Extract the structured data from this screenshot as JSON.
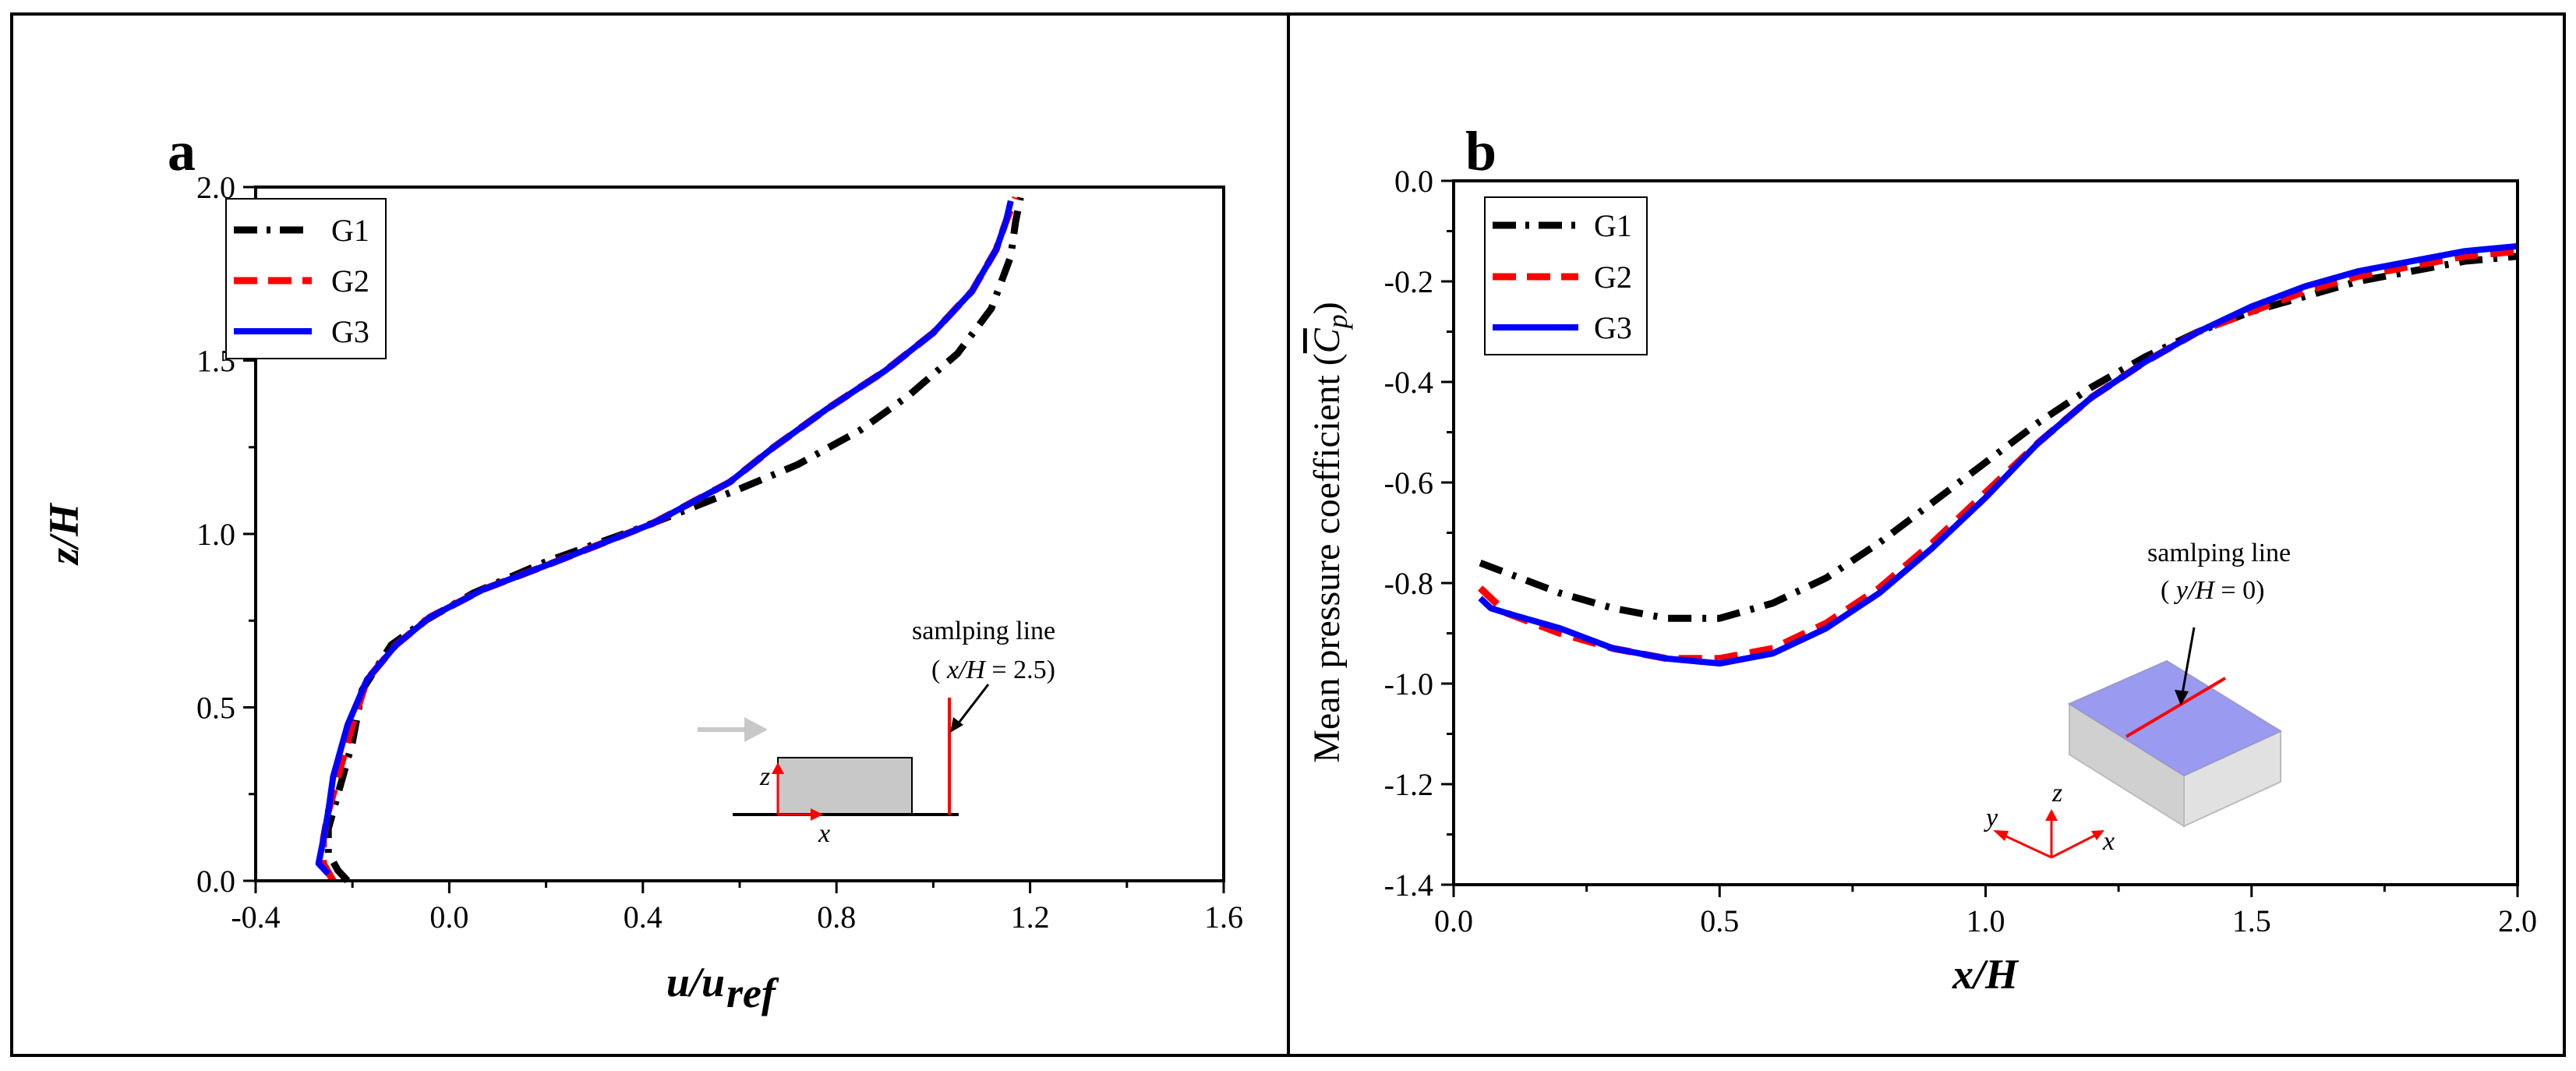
{
  "chart_data": [
    {
      "type": "line",
      "panel_label": "a",
      "xlabel": "u/u",
      "xlabel_sub": "ref",
      "ylabel": "z/H",
      "xlim": [
        -0.4,
        1.6
      ],
      "ylim": [
        0.0,
        2.0
      ],
      "xticks": [
        "-0.4",
        "0.0",
        "0.4",
        "0.8",
        "1.2",
        "1.6"
      ],
      "yticks": [
        "0.0",
        "0.5",
        "1.0",
        "1.5",
        "2.0"
      ],
      "legend": {
        "position": "top-left",
        "entries": [
          "G1",
          "G2",
          "G3"
        ]
      },
      "series": [
        {
          "name": "G1",
          "color": "#000000",
          "style": "dash-dot",
          "x": [
            -0.21,
            -0.23,
            -0.25,
            -0.25,
            -0.23,
            -0.2,
            -0.18,
            -0.12,
            -0.05,
            0.05,
            0.2,
            0.4,
            0.6,
            0.72,
            0.85,
            0.95,
            1.05,
            1.12,
            1.16,
            1.17,
            1.18
          ],
          "y": [
            0.0,
            0.03,
            0.08,
            0.15,
            0.25,
            0.4,
            0.55,
            0.68,
            0.75,
            0.83,
            0.92,
            1.02,
            1.13,
            1.2,
            1.3,
            1.4,
            1.52,
            1.65,
            1.8,
            1.9,
            1.97
          ]
        },
        {
          "name": "G2",
          "color": "#ff0000",
          "style": "dashed",
          "x": [
            -0.24,
            -0.26,
            -0.26,
            -0.25,
            -0.23,
            -0.2,
            -0.17,
            -0.11,
            -0.04,
            0.07,
            0.22,
            0.42,
            0.58,
            0.67,
            0.78,
            0.9,
            1.0,
            1.08,
            1.13,
            1.15,
            1.17
          ],
          "y": [
            0.0,
            0.05,
            0.12,
            0.2,
            0.3,
            0.45,
            0.58,
            0.68,
            0.76,
            0.84,
            0.92,
            1.03,
            1.15,
            1.25,
            1.36,
            1.47,
            1.58,
            1.7,
            1.82,
            1.9,
            1.97
          ]
        },
        {
          "name": "G3",
          "color": "#0000ff",
          "style": "solid",
          "x": [
            -0.25,
            -0.27,
            -0.26,
            -0.25,
            -0.24,
            -0.21,
            -0.17,
            -0.11,
            -0.04,
            0.07,
            0.22,
            0.42,
            0.58,
            0.67,
            0.78,
            0.9,
            1.0,
            1.08,
            1.13,
            1.15,
            1.16
          ],
          "y": [
            0.02,
            0.05,
            0.12,
            0.2,
            0.3,
            0.45,
            0.58,
            0.68,
            0.76,
            0.84,
            0.92,
            1.03,
            1.15,
            1.25,
            1.36,
            1.47,
            1.58,
            1.7,
            1.82,
            1.9,
            1.96
          ]
        }
      ],
      "annotation": {
        "line1": "samlping line",
        "line2_prefix": "( ",
        "line2_var": "x/H",
        "line2_value": " = 2.5)",
        "axis_z": "z",
        "axis_x": "x"
      }
    },
    {
      "type": "line",
      "panel_label": "b",
      "xlabel": "x/H",
      "ylabel": "Mean pressure coefficient (",
      "ylabel_var": "C",
      "ylabel_sub": "p",
      "ylabel_close": ")",
      "xlim": [
        0.0,
        2.0
      ],
      "ylim": [
        -1.4,
        0.0
      ],
      "xticks": [
        "0.0",
        "0.5",
        "1.0",
        "1.5",
        "2.0"
      ],
      "yticks": [
        "0.0",
        "-0.2",
        "-0.4",
        "-0.6",
        "-0.8",
        "-1.0",
        "-1.2",
        "-1.4"
      ],
      "legend": {
        "position": "top-left",
        "entries": [
          "G1",
          "G2",
          "G3"
        ]
      },
      "series": [
        {
          "name": "G1",
          "color": "#000000",
          "style": "dash-dot",
          "x": [
            0.05,
            0.1,
            0.2,
            0.3,
            0.4,
            0.5,
            0.6,
            0.7,
            0.8,
            0.9,
            1.0,
            1.1,
            1.2,
            1.3,
            1.4,
            1.5,
            1.6,
            1.7,
            1.8,
            1.9,
            2.0
          ],
          "y": [
            -0.76,
            -0.78,
            -0.82,
            -0.85,
            -0.87,
            -0.87,
            -0.84,
            -0.79,
            -0.72,
            -0.64,
            -0.56,
            -0.48,
            -0.41,
            -0.35,
            -0.3,
            -0.26,
            -0.23,
            -0.2,
            -0.18,
            -0.16,
            -0.15
          ]
        },
        {
          "name": "G2",
          "color": "#ff0000",
          "style": "dashed",
          "x": [
            0.05,
            0.1,
            0.2,
            0.3,
            0.4,
            0.5,
            0.6,
            0.7,
            0.8,
            0.9,
            1.0,
            1.1,
            1.2,
            1.3,
            1.4,
            1.5,
            1.6,
            1.7,
            1.8,
            1.9,
            2.0
          ],
          "y": [
            -0.81,
            -0.86,
            -0.9,
            -0.93,
            -0.95,
            -0.95,
            -0.93,
            -0.88,
            -0.81,
            -0.72,
            -0.62,
            -0.52,
            -0.43,
            -0.36,
            -0.3,
            -0.26,
            -0.22,
            -0.19,
            -0.17,
            -0.15,
            -0.14
          ]
        },
        {
          "name": "G3",
          "color": "#0000ff",
          "style": "solid",
          "x": [
            0.05,
            0.07,
            0.1,
            0.2,
            0.3,
            0.4,
            0.5,
            0.6,
            0.7,
            0.8,
            0.9,
            1.0,
            1.1,
            1.2,
            1.3,
            1.4,
            1.5,
            1.6,
            1.7,
            1.8,
            1.9,
            2.0
          ],
          "y": [
            -0.83,
            -0.85,
            -0.86,
            -0.89,
            -0.93,
            -0.95,
            -0.96,
            -0.94,
            -0.89,
            -0.82,
            -0.73,
            -0.63,
            -0.52,
            -0.43,
            -0.36,
            -0.3,
            -0.25,
            -0.21,
            -0.18,
            -0.16,
            -0.14,
            -0.13
          ]
        }
      ],
      "annotation": {
        "line1": "samlping line",
        "line2_prefix": "( ",
        "line2_var": "y/H",
        "line2_value": " = 0)",
        "axis_x": "x",
        "axis_y": "y",
        "axis_z": "z"
      }
    }
  ]
}
